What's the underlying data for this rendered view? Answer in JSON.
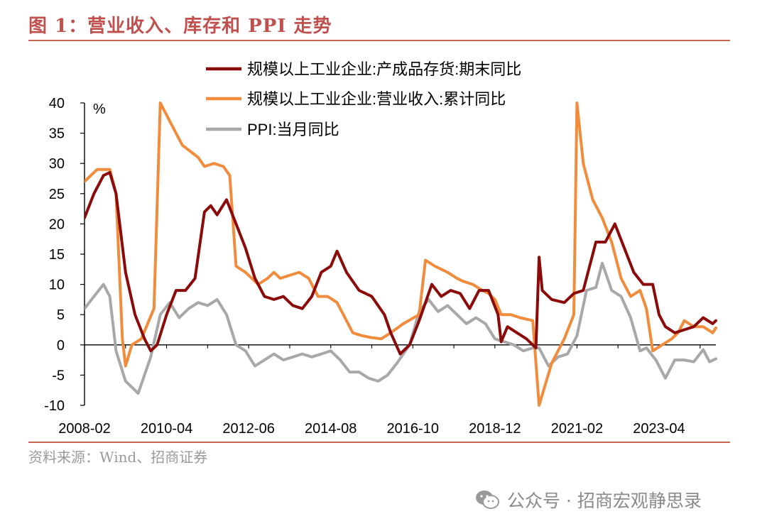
{
  "figure": {
    "title": "图 1：营业收入、库存和 PPI 走势",
    "source": "资料来源：Wind、招商证券",
    "watermark": "公众号 · 招商宏观静思录"
  },
  "colors": {
    "inventory": "#8b0a0a",
    "revenue": "#f08c3c",
    "ppi": "#a8a8a8",
    "rule": "#c8654a",
    "title": "#c0504d"
  },
  "icons": {
    "watermark": "wechat-icon"
  },
  "chart_data": {
    "type": "line",
    "ylabel": "%",
    "ylim": [
      -10,
      40
    ],
    "yticks": [
      -10,
      -5,
      0,
      5,
      10,
      15,
      20,
      25,
      30,
      35,
      40
    ],
    "x_start": "2008-02",
    "x_end": "2024-10",
    "xtick_labels": [
      "2008-02",
      "2010-04",
      "2012-06",
      "2014-08",
      "2016-10",
      "2018-12",
      "2021-02",
      "2023-04"
    ],
    "xtick_interval_months": 26,
    "grid": false,
    "legend_position": "top",
    "series": [
      {
        "name": "规模以上工业企业:产成品存货:期末同比",
        "key": "inventory",
        "points": [
          [
            "2008-02",
            21
          ],
          [
            "2008-05",
            25
          ],
          [
            "2008-08",
            28
          ],
          [
            "2008-10",
            28.5
          ],
          [
            "2008-12",
            25
          ],
          [
            "2009-03",
            12
          ],
          [
            "2009-06",
            5
          ],
          [
            "2009-09",
            1
          ],
          [
            "2009-11",
            -1
          ],
          [
            "2010-01",
            0
          ],
          [
            "2010-04",
            5
          ],
          [
            "2010-07",
            9
          ],
          [
            "2010-10",
            9
          ],
          [
            "2011-01",
            11
          ],
          [
            "2011-04",
            22
          ],
          [
            "2011-06",
            23
          ],
          [
            "2011-08",
            21.5
          ],
          [
            "2011-11",
            24
          ],
          [
            "2012-02",
            20
          ],
          [
            "2012-05",
            16
          ],
          [
            "2012-08",
            11
          ],
          [
            "2012-11",
            8
          ],
          [
            "2013-02",
            7.5
          ],
          [
            "2013-05",
            8
          ],
          [
            "2013-08",
            6.5
          ],
          [
            "2013-11",
            6
          ],
          [
            "2014-02",
            8
          ],
          [
            "2014-05",
            12
          ],
          [
            "2014-08",
            13
          ],
          [
            "2014-10",
            15.5
          ],
          [
            "2015-01",
            12
          ],
          [
            "2015-05",
            9
          ],
          [
            "2015-09",
            8
          ],
          [
            "2016-01",
            5
          ],
          [
            "2016-03",
            2
          ],
          [
            "2016-06",
            -1.5
          ],
          [
            "2016-09",
            0
          ],
          [
            "2016-12",
            4
          ],
          [
            "2017-04",
            10
          ],
          [
            "2017-07",
            8
          ],
          [
            "2017-10",
            9
          ],
          [
            "2018-01",
            8.5
          ],
          [
            "2018-04",
            6
          ],
          [
            "2018-07",
            9
          ],
          [
            "2018-10",
            9
          ],
          [
            "2019-01",
            5
          ],
          [
            "2019-02",
            0.5
          ],
          [
            "2019-04",
            3
          ],
          [
            "2019-07",
            2
          ],
          [
            "2019-10",
            1
          ],
          [
            "2020-01",
            -0.5
          ],
          [
            "2020-02",
            14.5
          ],
          [
            "2020-03",
            9
          ],
          [
            "2020-06",
            7.5
          ],
          [
            "2020-10",
            7
          ],
          [
            "2021-01",
            8.5
          ],
          [
            "2021-04",
            9
          ],
          [
            "2021-08",
            17
          ],
          [
            "2021-11",
            17
          ],
          [
            "2022-02",
            20
          ],
          [
            "2022-05",
            16
          ],
          [
            "2022-08",
            12
          ],
          [
            "2022-11",
            10
          ],
          [
            "2023-02",
            10
          ],
          [
            "2023-04",
            5
          ],
          [
            "2023-06",
            3
          ],
          [
            "2023-09",
            2
          ],
          [
            "2023-12",
            2.5
          ],
          [
            "2024-03",
            3
          ],
          [
            "2024-06",
            4.5
          ],
          [
            "2024-09",
            3.5
          ],
          [
            "2024-10",
            4
          ]
        ]
      },
      {
        "name": "规模以上工业企业:营业收入:累计同比",
        "key": "revenue",
        "points": [
          [
            "2008-02",
            27
          ],
          [
            "2008-06",
            29
          ],
          [
            "2008-10",
            29
          ],
          [
            "2008-12",
            25
          ],
          [
            "2009-02",
            1
          ],
          [
            "2009-03",
            -3.5
          ],
          [
            "2009-05",
            0
          ],
          [
            "2009-08",
            1
          ],
          [
            "2009-12",
            6
          ],
          [
            "2010-02",
            40
          ],
          [
            "2010-05",
            37
          ],
          [
            "2010-09",
            33
          ],
          [
            "2011-02",
            31
          ],
          [
            "2011-04",
            29.5
          ],
          [
            "2011-07",
            30
          ],
          [
            "2011-10",
            29.5
          ],
          [
            "2011-12",
            28
          ],
          [
            "2012-02",
            13
          ],
          [
            "2012-05",
            12
          ],
          [
            "2012-09",
            10
          ],
          [
            "2012-12",
            11
          ],
          [
            "2013-02",
            12
          ],
          [
            "2013-04",
            11
          ],
          [
            "2013-07",
            11.5
          ],
          [
            "2013-10",
            12
          ],
          [
            "2014-01",
            11
          ],
          [
            "2014-04",
            8
          ],
          [
            "2014-07",
            8
          ],
          [
            "2014-10",
            7
          ],
          [
            "2014-12",
            5
          ],
          [
            "2015-03",
            2
          ],
          [
            "2015-06",
            1.5
          ],
          [
            "2015-09",
            1.2
          ],
          [
            "2015-12",
            1
          ],
          [
            "2016-03",
            2
          ],
          [
            "2016-07",
            3.5
          ],
          [
            "2016-12",
            5
          ],
          [
            "2017-02",
            14
          ],
          [
            "2017-05",
            13
          ],
          [
            "2017-09",
            12
          ],
          [
            "2017-12",
            11
          ],
          [
            "2018-02",
            10.5
          ],
          [
            "2018-05",
            10
          ],
          [
            "2018-08",
            9
          ],
          [
            "2018-10",
            8.5
          ],
          [
            "2018-12",
            7.5
          ],
          [
            "2019-02",
            5
          ],
          [
            "2019-05",
            5
          ],
          [
            "2019-08",
            4.5
          ],
          [
            "2019-12",
            4
          ],
          [
            "2020-02",
            -10
          ],
          [
            "2020-06",
            -3
          ],
          [
            "2020-10",
            1
          ],
          [
            "2021-01",
            5
          ],
          [
            "2021-02",
            40
          ],
          [
            "2021-04",
            30
          ],
          [
            "2021-07",
            24
          ],
          [
            "2021-10",
            21
          ],
          [
            "2022-01",
            17
          ],
          [
            "2022-04",
            11
          ],
          [
            "2022-07",
            8
          ],
          [
            "2022-10",
            9
          ],
          [
            "2022-12",
            6
          ],
          [
            "2023-02",
            -1
          ],
          [
            "2023-05",
            0
          ],
          [
            "2023-08",
            1
          ],
          [
            "2023-10",
            2
          ],
          [
            "2023-12",
            4
          ],
          [
            "2024-03",
            3
          ],
          [
            "2024-06",
            3
          ],
          [
            "2024-09",
            2
          ],
          [
            "2024-10",
            2.8
          ]
        ]
      },
      {
        "name": "PPI:当月同比",
        "key": "ppi",
        "points": [
          [
            "2008-02",
            6
          ],
          [
            "2008-05",
            8
          ],
          [
            "2008-08",
            10
          ],
          [
            "2008-10",
            8
          ],
          [
            "2008-12",
            -1
          ],
          [
            "2009-03",
            -6
          ],
          [
            "2009-07",
            -8
          ],
          [
            "2009-11",
            -2
          ],
          [
            "2010-02",
            5
          ],
          [
            "2010-05",
            7
          ],
          [
            "2010-08",
            4.5
          ],
          [
            "2010-11",
            6
          ],
          [
            "2011-02",
            7
          ],
          [
            "2011-05",
            6.5
          ],
          [
            "2011-08",
            7.5
          ],
          [
            "2011-11",
            5
          ],
          [
            "2012-02",
            0
          ],
          [
            "2012-05",
            -1
          ],
          [
            "2012-08",
            -3.5
          ],
          [
            "2012-11",
            -2.5
          ],
          [
            "2013-02",
            -1.5
          ],
          [
            "2013-05",
            -2.5
          ],
          [
            "2013-08",
            -2
          ],
          [
            "2013-11",
            -1.5
          ],
          [
            "2014-02",
            -2
          ],
          [
            "2014-05",
            -1.5
          ],
          [
            "2014-08",
            -1
          ],
          [
            "2014-11",
            -2.5
          ],
          [
            "2015-02",
            -4.5
          ],
          [
            "2015-05",
            -4.5
          ],
          [
            "2015-08",
            -5.5
          ],
          [
            "2015-11",
            -6
          ],
          [
            "2016-02",
            -5
          ],
          [
            "2016-05",
            -3
          ],
          [
            "2016-09",
            0
          ],
          [
            "2016-12",
            5.5
          ],
          [
            "2017-03",
            7.5
          ],
          [
            "2017-06",
            5.5
          ],
          [
            "2017-09",
            6.5
          ],
          [
            "2017-12",
            5
          ],
          [
            "2018-03",
            3.5
          ],
          [
            "2018-06",
            4.5
          ],
          [
            "2018-09",
            3.5
          ],
          [
            "2018-12",
            1
          ],
          [
            "2019-03",
            0.5
          ],
          [
            "2019-06",
            0
          ],
          [
            "2019-09",
            -1
          ],
          [
            "2019-12",
            -0.5
          ],
          [
            "2020-02",
            -0.5
          ],
          [
            "2020-05",
            -3.5
          ],
          [
            "2020-08",
            -2
          ],
          [
            "2020-11",
            -1.5
          ],
          [
            "2021-02",
            1.5
          ],
          [
            "2021-05",
            9
          ],
          [
            "2021-08",
            9.5
          ],
          [
            "2021-10",
            13.5
          ],
          [
            "2022-01",
            9
          ],
          [
            "2022-04",
            8
          ],
          [
            "2022-07",
            4.5
          ],
          [
            "2022-10",
            -1
          ],
          [
            "2022-12",
            -0.5
          ],
          [
            "2023-03",
            -2.5
          ],
          [
            "2023-06",
            -5.5
          ],
          [
            "2023-09",
            -2.5
          ],
          [
            "2023-12",
            -2.5
          ],
          [
            "2024-03",
            -2.8
          ],
          [
            "2024-06",
            -0.8
          ],
          [
            "2024-08",
            -2.8
          ],
          [
            "2024-10",
            -2.3
          ]
        ]
      }
    ]
  }
}
